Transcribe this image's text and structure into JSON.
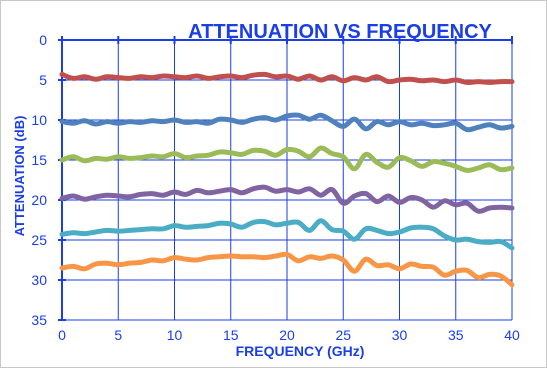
{
  "chart_data": {
    "type": "line",
    "title": "ATTENUATION VS FREQUENCY",
    "xlabel": "FREQUENCY (GHz)",
    "ylabel": "ATTENUATION (dB)",
    "xlim": [
      0,
      40
    ],
    "ylim": [
      0,
      35
    ],
    "y_inverted": true,
    "xticks": [
      0,
      5,
      10,
      15,
      20,
      25,
      30,
      35,
      40
    ],
    "yticks": [
      0,
      5,
      10,
      15,
      20,
      25,
      30,
      35
    ],
    "grid": true,
    "legend": "none",
    "x": [
      0,
      1,
      2,
      3,
      4,
      5,
      6,
      7,
      8,
      9,
      10,
      11,
      12,
      13,
      14,
      15,
      16,
      17,
      18,
      19,
      20,
      21,
      22,
      23,
      24,
      25,
      26,
      27,
      28,
      29,
      30,
      31,
      32,
      33,
      34,
      35,
      36,
      37,
      38,
      39,
      40
    ],
    "series": [
      {
        "color": "#c0504d",
        "values": [
          4.3,
          4.8,
          4.6,
          4.9,
          4.6,
          4.7,
          4.8,
          4.6,
          4.7,
          4.5,
          4.6,
          4.7,
          4.5,
          4.8,
          4.6,
          4.5,
          4.7,
          4.4,
          4.3,
          4.6,
          4.5,
          4.9,
          4.5,
          5.0,
          4.6,
          5.1,
          4.7,
          5.0,
          4.6,
          5.2,
          5.0,
          4.9,
          5.1,
          5.0,
          5.2,
          5.0,
          5.3,
          5.2,
          5.3,
          5.2,
          5.2
        ]
      },
      {
        "color": "#4f81bd",
        "values": [
          10.2,
          10.4,
          10.1,
          10.5,
          10.2,
          10.4,
          10.2,
          10.3,
          10.1,
          10.2,
          10.0,
          10.3,
          10.2,
          10.4,
          9.9,
          10.0,
          10.3,
          9.9,
          9.7,
          10.0,
          9.5,
          9.4,
          9.9,
          9.4,
          10.1,
          10.8,
          9.9,
          11.1,
          10.2,
          10.6,
          10.2,
          10.6,
          10.4,
          10.7,
          10.6,
          10.4,
          11.2,
          10.9,
          10.6,
          11.0,
          10.8
        ]
      },
      {
        "color": "#9bbb59",
        "values": [
          15.0,
          14.6,
          15.1,
          14.8,
          14.9,
          14.6,
          14.8,
          14.7,
          14.5,
          14.6,
          14.2,
          14.7,
          14.5,
          14.4,
          14.0,
          14.1,
          14.3,
          13.8,
          13.9,
          14.4,
          13.7,
          13.9,
          14.6,
          13.5,
          14.2,
          14.6,
          16.1,
          14.3,
          15.3,
          15.9,
          14.7,
          15.1,
          15.8,
          15.2,
          15.4,
          15.8,
          16.3,
          16.0,
          15.6,
          16.2,
          16.0
        ]
      },
      {
        "color": "#8064a2",
        "values": [
          19.8,
          19.5,
          19.9,
          19.6,
          19.4,
          19.5,
          19.6,
          19.3,
          19.2,
          19.4,
          19.0,
          19.3,
          18.8,
          19.1,
          18.9,
          18.7,
          19.1,
          18.6,
          18.4,
          18.9,
          18.7,
          19.0,
          18.6,
          19.4,
          18.7,
          20.4,
          19.5,
          19.2,
          20.2,
          19.5,
          20.3,
          19.7,
          20.0,
          20.9,
          20.1,
          20.6,
          20.4,
          21.4,
          21.0,
          20.9,
          21.0
        ]
      },
      {
        "color": "#4bacc6",
        "values": [
          24.3,
          24.1,
          24.2,
          24.0,
          23.8,
          23.9,
          23.8,
          23.7,
          23.6,
          23.6,
          23.2,
          23.4,
          23.3,
          23.2,
          22.9,
          23.0,
          23.4,
          22.8,
          22.7,
          23.1,
          22.9,
          22.8,
          23.8,
          22.6,
          23.7,
          23.9,
          24.9,
          23.6,
          23.8,
          24.2,
          24.0,
          23.5,
          23.4,
          23.6,
          24.5,
          25.0,
          24.9,
          25.2,
          25.3,
          25.2,
          26.0
        ]
      },
      {
        "color": "#f79646",
        "values": [
          28.5,
          28.3,
          28.6,
          28.0,
          27.9,
          28.1,
          27.9,
          27.8,
          27.5,
          27.6,
          27.2,
          27.4,
          27.5,
          27.2,
          27.1,
          27.0,
          27.1,
          27.1,
          27.2,
          27.0,
          26.8,
          27.6,
          27.1,
          27.3,
          27.0,
          27.5,
          28.9,
          27.4,
          28.2,
          28.1,
          28.6,
          28.0,
          28.3,
          28.4,
          29.4,
          28.9,
          28.8,
          29.7,
          29.3,
          29.5,
          30.6
        ]
      }
    ]
  }
}
